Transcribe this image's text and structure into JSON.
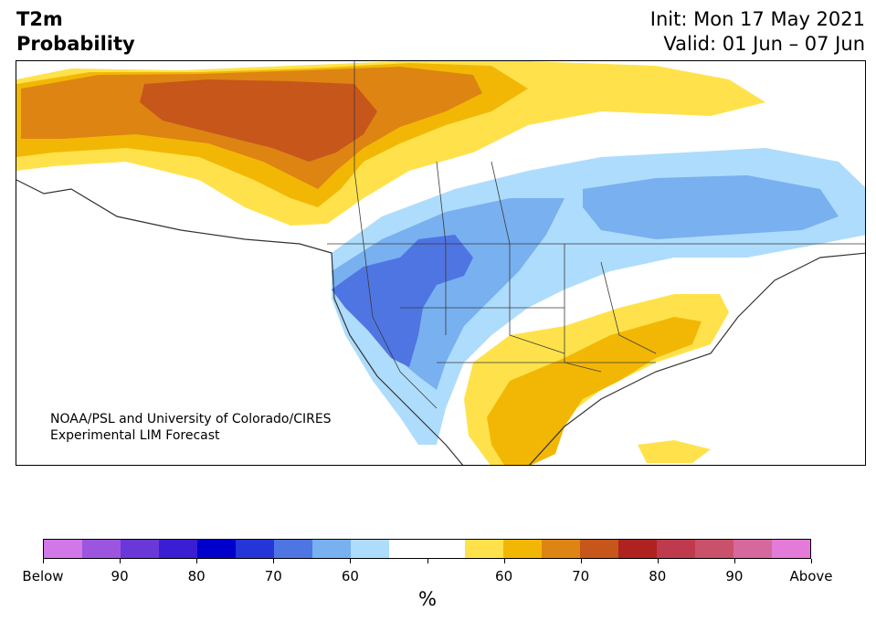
{
  "header": {
    "variable": "T2m",
    "product": "Probability",
    "init": "Init: Mon 17 May 2021",
    "valid": "Valid: 01 Jun – 07 Jun"
  },
  "credit": {
    "line1": "NOAA/PSL and University of Colorado/CIRES",
    "line2": "Experimental LIM Forecast"
  },
  "colorbar": {
    "unit": "%",
    "colors": [
      "#d277e8",
      "#9b55de",
      "#6a38d8",
      "#3a1ed2",
      "#0000cc",
      "#2436d8",
      "#4f75e2",
      "#78b0f0",
      "#aedcfc",
      "#ffffff",
      "#ffffff",
      "#ffe24b",
      "#f2b705",
      "#dd8412",
      "#c7561a",
      "#b0221f",
      "#be3a4c",
      "#c9526a",
      "#d5689c",
      "#e47bd8"
    ],
    "labels": [
      "Below",
      "90",
      "80",
      "70",
      "60",
      "",
      "60",
      "70",
      "80",
      "90",
      "Above"
    ]
  },
  "colors": {
    "above_60": "#ffe24b",
    "above_70": "#f2b705",
    "above_80": "#dd8412",
    "above_90": "#c7561a",
    "below_60": "#aedcfc",
    "below_70": "#78b0f0",
    "below_80": "#4f75e2"
  }
}
